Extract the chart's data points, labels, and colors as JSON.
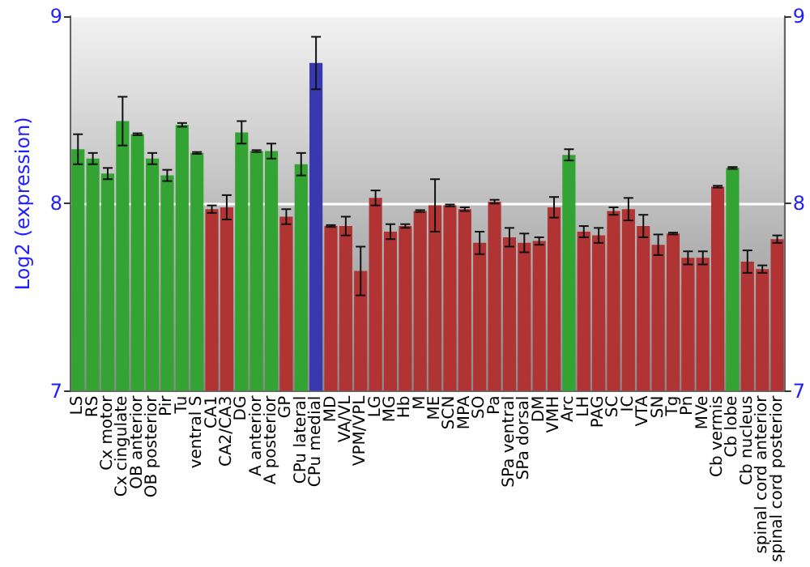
{
  "chart_data": {
    "type": "bar",
    "ylabel": "Log2 (expression)",
    "categories": [
      "LS",
      "RS",
      "Cx motor",
      "Cx cingulate",
      "OB anterior",
      "OB posterior",
      "Pir",
      "Tu",
      "ventral S",
      "CA1",
      "CA2/CA3",
      "DG",
      "A anterior",
      "A posterior",
      "GP",
      "CPu lateral",
      "CPu medial",
      "MD",
      "VA/VL",
      "VPM/VPL",
      "LG",
      "MG",
      "Hb",
      "M",
      "ME",
      "SCN",
      "MPA",
      "SO",
      "Pa",
      "SPa ventral",
      "SPa dorsal",
      "DM",
      "VMH",
      "Arc",
      "LH",
      "PAG",
      "SC",
      "IC",
      "VTA",
      "SN",
      "Tg",
      "Pn",
      "MVe",
      "Cb vermis",
      "Cb lobe",
      "Cb nucleus",
      "spinal cord anterior",
      "spinal cord posterior"
    ],
    "values": [
      8.29,
      8.24,
      8.16,
      8.44,
      8.37,
      8.24,
      8.15,
      8.42,
      8.27,
      7.97,
      7.98,
      8.38,
      8.28,
      8.28,
      7.93,
      8.21,
      8.75,
      7.88,
      7.88,
      7.64,
      8.03,
      7.85,
      7.88,
      7.96,
      7.99,
      7.99,
      7.97,
      7.79,
      8.01,
      7.82,
      7.79,
      7.8,
      7.98,
      8.26,
      7.85,
      7.83,
      7.96,
      7.97,
      7.88,
      7.78,
      7.84,
      7.71,
      7.71,
      8.09,
      8.19,
      7.69,
      7.65,
      7.81
    ],
    "errors": [
      0.08,
      0.03,
      0.03,
      0.13,
      0.005,
      0.03,
      0.03,
      0.01,
      0.005,
      0.02,
      0.065,
      0.06,
      0.005,
      0.04,
      0.04,
      0.06,
      0.14,
      0.005,
      0.05,
      0.13,
      0.04,
      0.04,
      0.01,
      0.005,
      0.14,
      0.005,
      0.01,
      0.06,
      0.01,
      0.05,
      0.05,
      0.02,
      0.055,
      0.03,
      0.03,
      0.04,
      0.02,
      0.06,
      0.06,
      0.055,
      0.005,
      0.035,
      0.035,
      0.005,
      0.005,
      0.06,
      0.02,
      0.02
    ],
    "colors": [
      "#33a333",
      "#33a333",
      "#33a333",
      "#33a333",
      "#33a333",
      "#33a333",
      "#33a333",
      "#33a333",
      "#33a333",
      "#b03434",
      "#b03434",
      "#33a333",
      "#33a333",
      "#33a333",
      "#b03434",
      "#33a333",
      "#3838b0",
      "#b03434",
      "#b03434",
      "#b03434",
      "#b03434",
      "#b03434",
      "#b03434",
      "#b03434",
      "#b03434",
      "#b03434",
      "#b03434",
      "#b03434",
      "#b03434",
      "#b03434",
      "#b03434",
      "#b03434",
      "#b03434",
      "#33a333",
      "#b03434",
      "#b03434",
      "#b03434",
      "#b03434",
      "#b03434",
      "#b03434",
      "#b03434",
      "#b03434",
      "#b03434",
      "#b03434",
      "#33a333",
      "#b03434",
      "#b03434",
      "#b03434"
    ],
    "ylim": [
      7,
      9
    ],
    "yticks": [
      7,
      8,
      9
    ],
    "y2lim": [
      7,
      9
    ],
    "y2ticks": [
      7,
      8,
      9
    ],
    "grid": "y"
  }
}
